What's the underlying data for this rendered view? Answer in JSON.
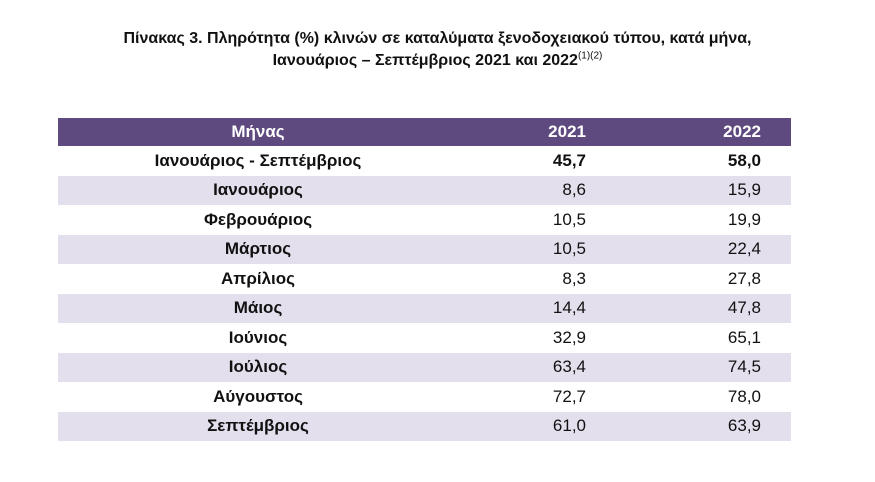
{
  "title": {
    "line1": "Πίνακας 3. Πληρότητα (%) κλινών σε καταλύματα ξενοδοχειακού τύπου, κατά μήνα,",
    "line2": "Ιανουάριος – Σεπτέμβριος 2021 και 2022",
    "footnote": "(1)(2)"
  },
  "table": {
    "header": {
      "month": "Μήνας",
      "year1": "2021",
      "year2": "2022"
    },
    "total": {
      "month": "Ιανουάριος - Σεπτέμβριος",
      "year1": "45,7",
      "year2": "58,0"
    },
    "rows": [
      {
        "month": "Ιανουάριος",
        "year1": "8,6",
        "year2": "15,9"
      },
      {
        "month": "Φεβρουάριος",
        "year1": "10,5",
        "year2": "19,9"
      },
      {
        "month": "Μάρτιος",
        "year1": "10,5",
        "year2": "22,4"
      },
      {
        "month": "Απρίλιος",
        "year1": "8,3",
        "year2": "27,8"
      },
      {
        "month": "Μάιος",
        "year1": "14,4",
        "year2": "47,8"
      },
      {
        "month": "Ιούνιος",
        "year1": "32,9",
        "year2": "65,1"
      },
      {
        "month": "Ιούλιος",
        "year1": "63,4",
        "year2": "74,5"
      },
      {
        "month": "Αύγουστος",
        "year1": "72,7",
        "year2": "78,0"
      },
      {
        "month": "Σεπτέμβριος",
        "year1": "61,0",
        "year2": "63,9"
      }
    ]
  },
  "colors": {
    "header_bg": "#5f4a7f",
    "stripe_bg": "#e3dfec"
  }
}
